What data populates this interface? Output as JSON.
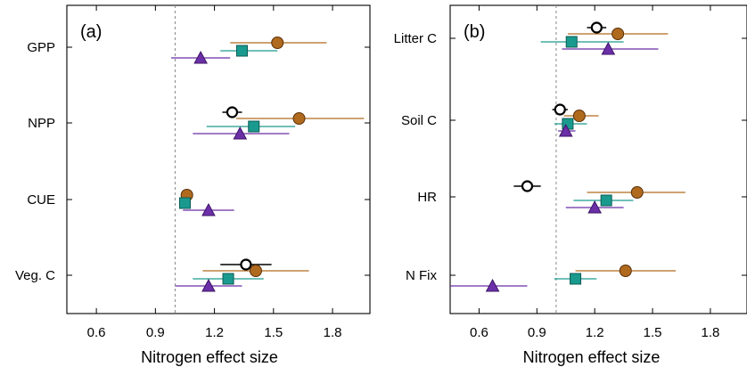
{
  "chart_data": [
    {
      "type": "scatter",
      "panel_label": "(a)",
      "xlabel": "Nitrogen effect size",
      "xlim": [
        0.45,
        1.99
      ],
      "xticks": [
        0.6,
        0.9,
        1.2,
        1.5,
        1.8
      ],
      "xtick_labels": [
        "0.6",
        "0.9",
        "1.2",
        "1.5",
        "1.8"
      ],
      "reference_line": 1.0,
      "categories": [
        "GPP",
        "NPP",
        "CUE",
        "Veg. C"
      ],
      "series": [
        {
          "marker": "circle",
          "color": "#000000",
          "points": [
            null,
            {
              "x": 1.29,
              "lo": 1.24,
              "hi": 1.34
            },
            null,
            {
              "x": 1.36,
              "lo": 1.23,
              "hi": 1.49
            }
          ]
        },
        {
          "marker": "filled-circle",
          "color": "#b06a1e",
          "points": [
            {
              "x": 1.52,
              "lo": 1.28,
              "hi": 1.77
            },
            {
              "x": 1.63,
              "lo": 1.31,
              "hi": 1.96
            },
            {
              "x": 1.06,
              "lo": 1.03,
              "hi": 1.09
            },
            {
              "x": 1.41,
              "lo": 1.14,
              "hi": 1.68
            }
          ]
        },
        {
          "marker": "square",
          "color": "#1a9a8e",
          "points": [
            {
              "x": 1.34,
              "lo": 1.23,
              "hi": 1.52
            },
            {
              "x": 1.4,
              "lo": 1.16,
              "hi": 1.61
            },
            {
              "x": 1.05,
              "lo": 1.02,
              "hi": 1.08
            },
            {
              "x": 1.27,
              "lo": 1.09,
              "hi": 1.45
            }
          ]
        },
        {
          "marker": "triangle",
          "color": "#6b2fa8",
          "points": [
            {
              "x": 1.13,
              "lo": 0.98,
              "hi": 1.28
            },
            {
              "x": 1.33,
              "lo": 1.09,
              "hi": 1.58
            },
            {
              "x": 1.17,
              "lo": 1.04,
              "hi": 1.3
            },
            {
              "x": 1.17,
              "lo": 1.0,
              "hi": 1.34
            }
          ]
        }
      ]
    },
    {
      "type": "scatter",
      "panel_label": "(b)",
      "xlabel": "Nitrogen effect size",
      "xlim": [
        0.45,
        1.99
      ],
      "xticks": [
        0.6,
        0.9,
        1.2,
        1.5,
        1.8
      ],
      "xtick_labels": [
        "0.6",
        "0.9",
        "1.2",
        "1.5",
        "1.8"
      ],
      "reference_line": 1.0,
      "categories": [
        "Litter C",
        "Soil C",
        "HR",
        "N Fix"
      ],
      "series": [
        {
          "marker": "circle",
          "color": "#000000",
          "points": [
            {
              "x": 1.21,
              "lo": 1.16,
              "hi": 1.26
            },
            {
              "x": 1.02,
              "lo": 0.98,
              "hi": 1.06
            },
            {
              "x": 0.85,
              "lo": 0.78,
              "hi": 0.92
            },
            null
          ]
        },
        {
          "marker": "filled-circle",
          "color": "#b06a1e",
          "points": [
            {
              "x": 1.32,
              "lo": 1.06,
              "hi": 1.58
            },
            {
              "x": 1.12,
              "lo": 1.04,
              "hi": 1.22
            },
            {
              "x": 1.42,
              "lo": 1.16,
              "hi": 1.67
            },
            {
              "x": 1.36,
              "lo": 1.1,
              "hi": 1.62
            }
          ]
        },
        {
          "marker": "square",
          "color": "#1a9a8e",
          "points": [
            {
              "x": 1.08,
              "lo": 0.92,
              "hi": 1.35
            },
            {
              "x": 1.06,
              "lo": 0.99,
              "hi": 1.16
            },
            {
              "x": 1.26,
              "lo": 1.09,
              "hi": 1.4
            },
            {
              "x": 1.1,
              "lo": 0.99,
              "hi": 1.21
            }
          ]
        },
        {
          "marker": "triangle",
          "color": "#6b2fa8",
          "points": [
            {
              "x": 1.27,
              "lo": 1.03,
              "hi": 1.53
            },
            {
              "x": 1.05,
              "lo": 1.01,
              "hi": 1.1
            },
            {
              "x": 1.2,
              "lo": 1.05,
              "hi": 1.35
            },
            {
              "x": 0.67,
              "lo": 0.45,
              "hi": 0.85
            }
          ]
        }
      ]
    }
  ]
}
